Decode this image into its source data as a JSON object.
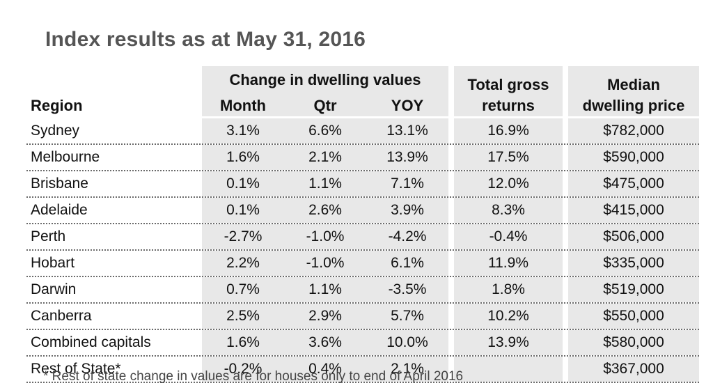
{
  "title": "Index results as at May 31, 2016",
  "headers": {
    "region": "Region",
    "change_group": "Change in dwelling values",
    "month": "Month",
    "qtr": "Qtr",
    "yoy": "YOY",
    "total_gross_line1": "Total gross",
    "total_gross_line2": "returns",
    "median_line1": "Median",
    "median_line2": "dwelling price"
  },
  "rows": [
    {
      "region": "Sydney",
      "month": "3.1%",
      "qtr": "6.6%",
      "yoy": "13.1%",
      "returns": "16.9%",
      "median": "$782,000"
    },
    {
      "region": "Melbourne",
      "month": "1.6%",
      "qtr": "2.1%",
      "yoy": "13.9%",
      "returns": "17.5%",
      "median": "$590,000"
    },
    {
      "region": "Brisbane",
      "month": "0.1%",
      "qtr": "1.1%",
      "yoy": "7.1%",
      "returns": "12.0%",
      "median": "$475,000"
    },
    {
      "region": "Adelaide",
      "month": "0.1%",
      "qtr": "2.6%",
      "yoy": "3.9%",
      "returns": "8.3%",
      "median": "$415,000"
    },
    {
      "region": "Perth",
      "month": "-2.7%",
      "qtr": "-1.0%",
      "yoy": "-4.2%",
      "returns": "-0.4%",
      "median": "$506,000"
    },
    {
      "region": "Hobart",
      "month": "2.2%",
      "qtr": "-1.0%",
      "yoy": "6.1%",
      "returns": "11.9%",
      "median": "$335,000"
    },
    {
      "region": "Darwin",
      "month": "0.7%",
      "qtr": "1.1%",
      "yoy": "-3.5%",
      "returns": "1.8%",
      "median": "$519,000"
    },
    {
      "region": "Canberra",
      "month": "2.5%",
      "qtr": "2.9%",
      "yoy": "5.7%",
      "returns": "10.2%",
      "median": "$550,000"
    },
    {
      "region": "Combined capitals",
      "month": "1.6%",
      "qtr": "3.6%",
      "yoy": "10.0%",
      "returns": "13.9%",
      "median": "$580,000"
    },
    {
      "region": "Rest of State*",
      "month": "-0.2%",
      "qtr": "0.4%",
      "yoy": "2.1%",
      "returns": "",
      "median": "$367,000"
    }
  ],
  "footnote": "* Rest of state change in values are for houses only to end of April 2016",
  "colors": {
    "title": "#555555",
    "header_bg": "#e8e8e8",
    "text": "#111111",
    "dotted_rule": "#6a6a6a"
  }
}
